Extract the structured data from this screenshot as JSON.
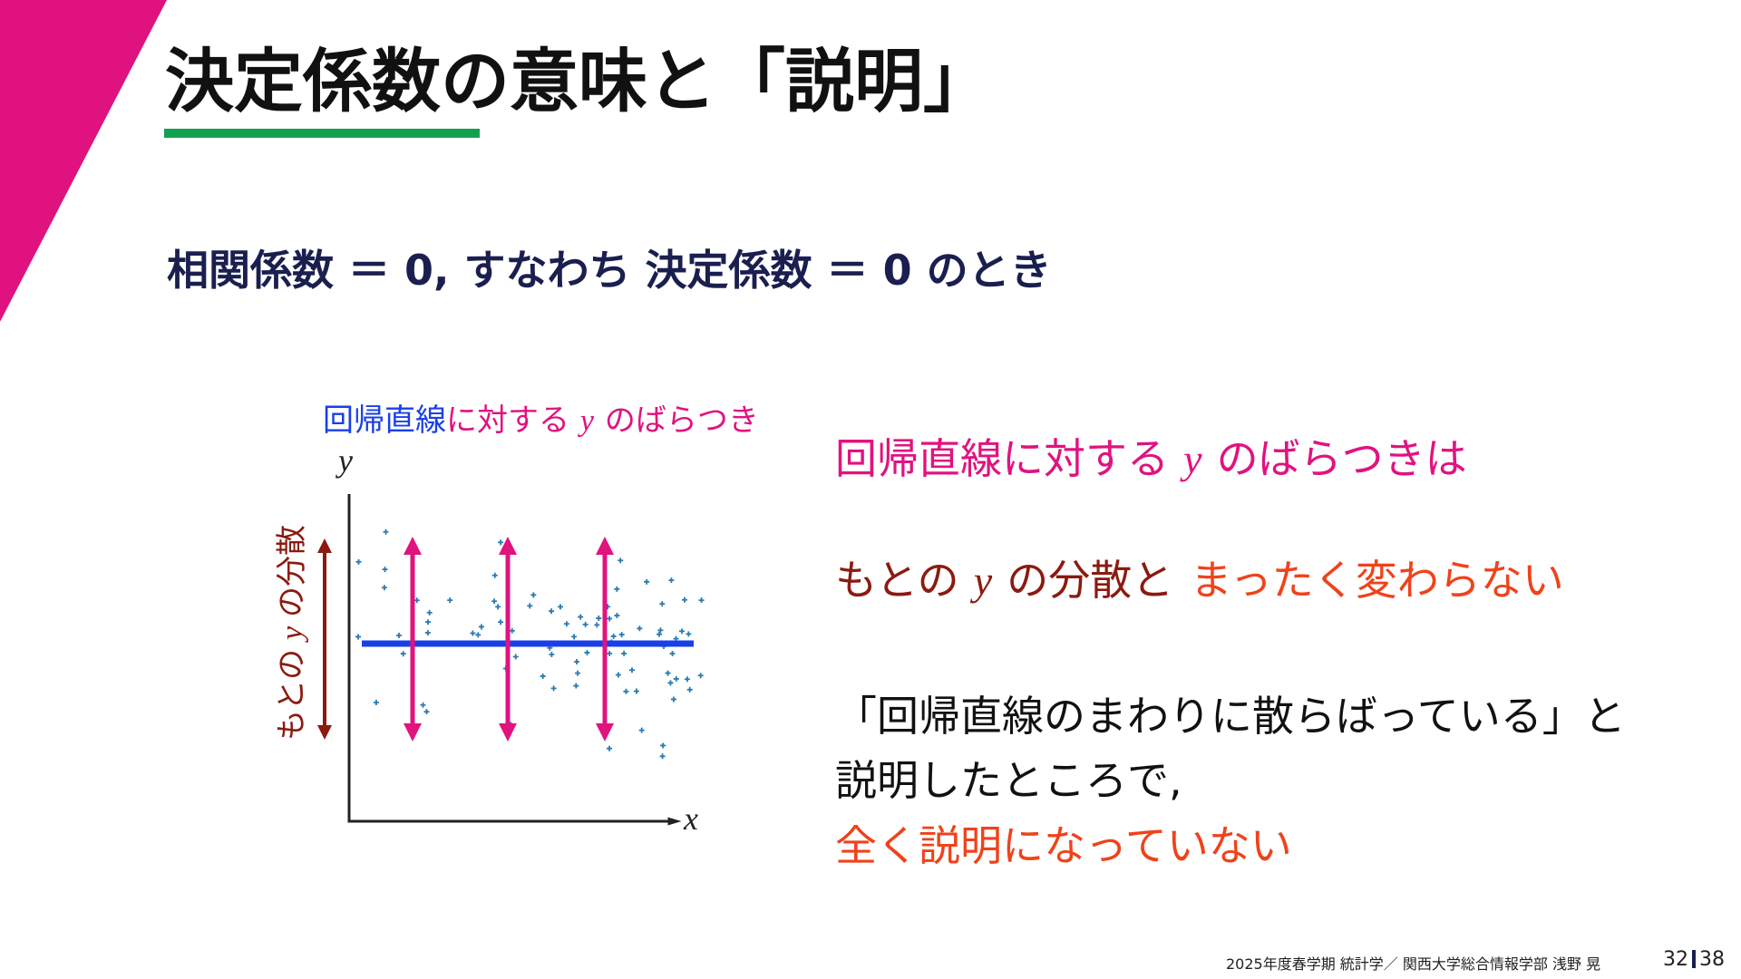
{
  "header": {
    "title": "決定係数の意味と「説明」"
  },
  "subtitle": "相関係数 ＝ 0, すなわち 決定係数 ＝ 0 のとき",
  "figure": {
    "label": [
      "回帰直線",
      "に対する",
      "y",
      "のばらつき"
    ],
    "y_axis": "y",
    "x_axis": "x",
    "variance_label": [
      "もとの",
      "y",
      "の分散"
    ]
  },
  "body": {
    "lines": [
      [
        "回帰直線に対する",
        "y",
        "のばらつきは"
      ],
      [
        "もとの",
        "y",
        "の分散と",
        "まったく変わらない"
      ],
      [
        "「回帰直線のまわりに散らばっている」と"
      ],
      [
        "説明したところで,"
      ],
      [
        "全く説明になっていない"
      ]
    ]
  },
  "footer": {
    "course": "2025年度春学期 統計学／ 関西大学総合情報学部 浅野 晃",
    "page": "32",
    "total": "38"
  }
}
